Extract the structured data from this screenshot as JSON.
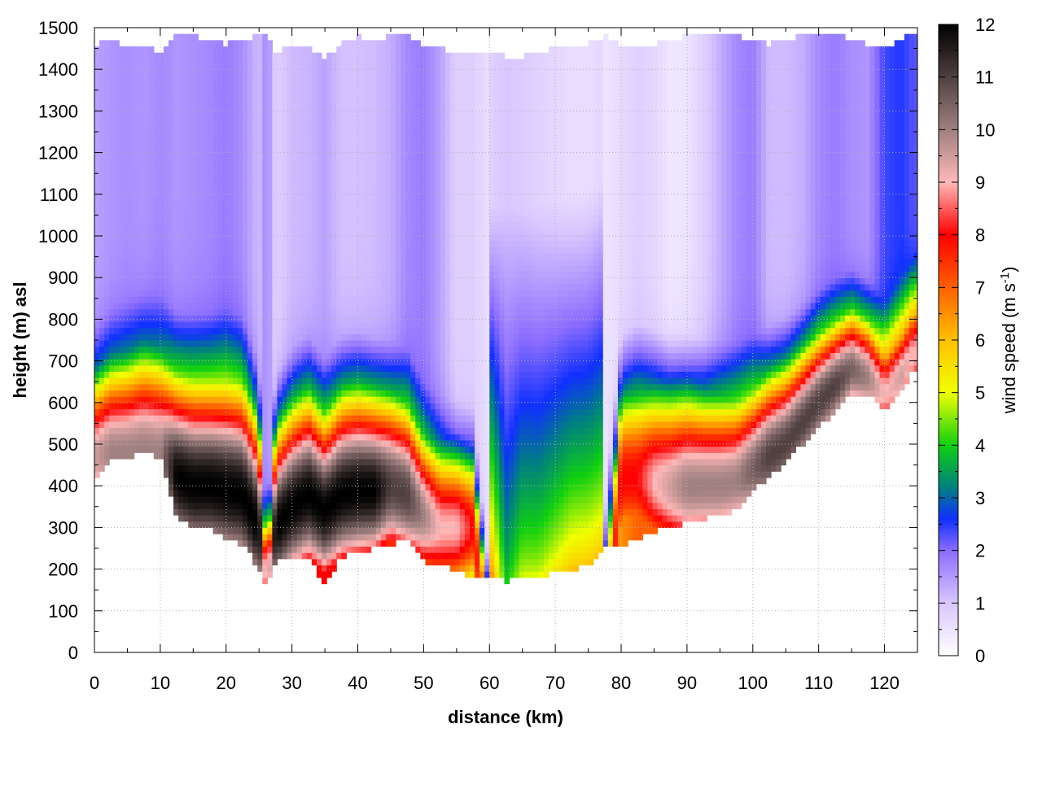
{
  "chart_data": {
    "type": "heatmap",
    "title": "",
    "xlabel": "distance (km)",
    "ylabel": "height (m) asl",
    "colorbar_label": "wind speed (m s",
    "colorbar_label_sup": "-1",
    "colorbar_label_close": ")",
    "xlim": [
      0,
      125
    ],
    "ylim": [
      0,
      1500
    ],
    "clim": [
      0,
      12
    ],
    "x_ticks": [
      "0",
      "10",
      "20",
      "30",
      "40",
      "50",
      "60",
      "70",
      "80",
      "90",
      "100",
      "110",
      "120"
    ],
    "y_ticks": [
      "0",
      "100",
      "200",
      "300",
      "400",
      "500",
      "600",
      "700",
      "800",
      "900",
      "1000",
      "1100",
      "1200",
      "1300",
      "1400",
      "1500"
    ],
    "c_ticks": [
      "0",
      "1",
      "2",
      "3",
      "4",
      "5",
      "6",
      "7",
      "8",
      "9",
      "10",
      "11",
      "12"
    ],
    "grid": true,
    "colormap": [
      {
        "v": 0,
        "c": "#ffffff"
      },
      {
        "v": 1,
        "c": "#d9c6ff"
      },
      {
        "v": 2,
        "c": "#8a6cff"
      },
      {
        "v": 2.6,
        "c": "#1030ff"
      },
      {
        "v": 3.2,
        "c": "#008080"
      },
      {
        "v": 4,
        "c": "#10d010"
      },
      {
        "v": 5,
        "c": "#f0ff00"
      },
      {
        "v": 6,
        "c": "#ffc000"
      },
      {
        "v": 7,
        "c": "#ff6000"
      },
      {
        "v": 8,
        "c": "#ff0000"
      },
      {
        "v": 9,
        "c": "#ffb8b8"
      },
      {
        "v": 10,
        "c": "#a08080"
      },
      {
        "v": 11,
        "c": "#504040"
      },
      {
        "v": 12,
        "c": "#000000"
      }
    ],
    "x_samples": [
      0,
      2.5,
      5,
      7.5,
      10,
      12.5,
      15,
      17.5,
      20,
      22.5,
      25,
      26.2,
      27.5,
      30,
      32.5,
      35,
      37.5,
      40,
      42.5,
      45,
      47.5,
      50,
      52.5,
      55,
      57.5,
      60,
      62.5,
      65,
      67.5,
      70,
      72.5,
      75,
      77.5,
      80,
      82.5,
      85,
      87.5,
      90,
      92.5,
      95,
      97.5,
      100,
      102.5,
      105,
      107.5,
      110,
      112.5,
      115,
      117.5,
      120,
      122.5,
      124.5
    ],
    "ground_height_m": [
      420,
      460,
      470,
      480,
      470,
      320,
      300,
      295,
      270,
      260,
      200,
      150,
      220,
      220,
      230,
      160,
      230,
      240,
      250,
      260,
      270,
      220,
      210,
      200,
      180,
      185,
      170,
      180,
      185,
      190,
      200,
      210,
      250,
      260,
      270,
      290,
      300,
      310,
      320,
      330,
      340,
      390,
      420,
      460,
      500,
      540,
      580,
      620,
      620,
      580,
      620,
      680
    ],
    "jet_core_height_m": [
      470,
      480,
      480,
      490,
      480,
      420,
      400,
      400,
      390,
      380,
      300,
      160,
      300,
      350,
      380,
      340,
      380,
      390,
      390,
      400,
      380,
      330,
      300,
      300,
      300,
      0,
      0,
      0,
      0,
      0,
      0,
      0,
      0,
      420,
      420,
      410,
      400,
      400,
      400,
      400,
      410,
      440,
      470,
      500,
      550,
      600,
      640,
      680,
      660,
      620,
      660,
      720
    ],
    "jet_core_speed_ms": [
      9.5,
      10,
      10,
      10,
      10,
      12,
      12,
      12,
      12,
      12,
      12,
      8,
      12,
      12,
      12,
      12,
      12,
      12,
      12,
      11,
      11,
      10,
      9,
      9,
      8,
      7,
      6,
      5,
      6,
      6,
      6,
      6,
      7,
      8,
      8,
      9,
      9.5,
      10,
      10,
      10,
      10,
      10.5,
      11,
      11,
      11,
      11,
      11,
      10.5,
      10,
      9,
      9.5,
      9
    ],
    "jet_core_depth_m": [
      200,
      220,
      230,
      240,
      240,
      250,
      260,
      260,
      270,
      270,
      250,
      80,
      230,
      240,
      240,
      230,
      240,
      240,
      230,
      220,
      220,
      200,
      200,
      190,
      180,
      120,
      100,
      110,
      120,
      160,
      180,
      200,
      220,
      220,
      230,
      230,
      230,
      230,
      220,
      220,
      210,
      200,
      200,
      190,
      180,
      170,
      160,
      150,
      150,
      140,
      150,
      150
    ],
    "upper_layer_speed_ms": [
      2,
      2.2,
      2.3,
      2.2,
      2.4,
      2.2,
      2.3,
      2.4,
      2.6,
      2.3,
      1.6,
      2.5,
      1.2,
      1.6,
      1.7,
      2,
      1.5,
      1.5,
      1.6,
      1.8,
      2.4,
      2.6,
      2,
      1.2,
      1.2,
      0.8,
      1,
      0.9,
      0.8,
      0.7,
      0.6,
      0.6,
      0.7,
      0.9,
      1.2,
      1.0,
      0.6,
      0.7,
      1.2,
      1.8,
      2.4,
      2.6,
      1.6,
      1.6,
      1.8,
      2.4,
      2.6,
      2.3,
      2.2,
      3.4,
      3.6,
      3.2
    ],
    "upper_layer_top_m": [
      1460,
      1470,
      1450,
      1460,
      1440,
      1490,
      1480,
      1470,
      1460,
      1470,
      1480,
      1480,
      1440,
      1460,
      1450,
      1430,
      1460,
      1480,
      1470,
      1480,
      1480,
      1460,
      1450,
      1440,
      1440,
      1440,
      1430,
      1430,
      1440,
      1450,
      1460,
      1460,
      1480,
      1460,
      1450,
      1460,
      1470,
      1480,
      1480,
      1480,
      1480,
      1470,
      1460,
      1470,
      1480,
      1480,
      1490,
      1470,
      1460,
      1450,
      1470,
      1490
    ],
    "low_level_speed_ms": [
      5,
      5,
      5,
      5,
      5,
      8,
      8,
      8,
      8,
      8,
      7,
      6,
      8,
      8,
      8,
      8,
      8,
      8,
      8,
      7,
      7,
      6,
      5,
      4.5,
      5,
      7,
      4,
      5,
      5,
      5.5,
      6,
      6,
      6,
      6.5,
      7,
      7,
      7,
      7,
      7,
      7,
      7,
      7,
      7,
      7,
      7,
      7,
      7,
      7,
      7,
      8,
      8,
      8
    ]
  }
}
